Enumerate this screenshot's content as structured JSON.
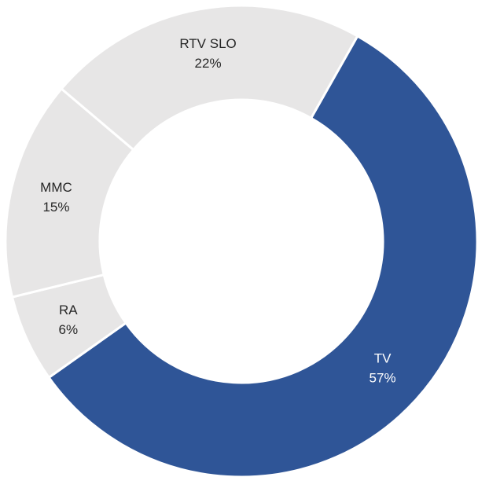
{
  "chart_data": {
    "type": "donut",
    "categories": [
      "TV",
      "RA",
      "MMC",
      "RTV SLO"
    ],
    "values": [
      57,
      6,
      15,
      22
    ],
    "value_labels": [
      "57%",
      "6%",
      "15%",
      "22%"
    ],
    "colors": [
      "#2f5597",
      "#e7e6e6",
      "#e7e6e6",
      "#e7e6e6"
    ]
  }
}
